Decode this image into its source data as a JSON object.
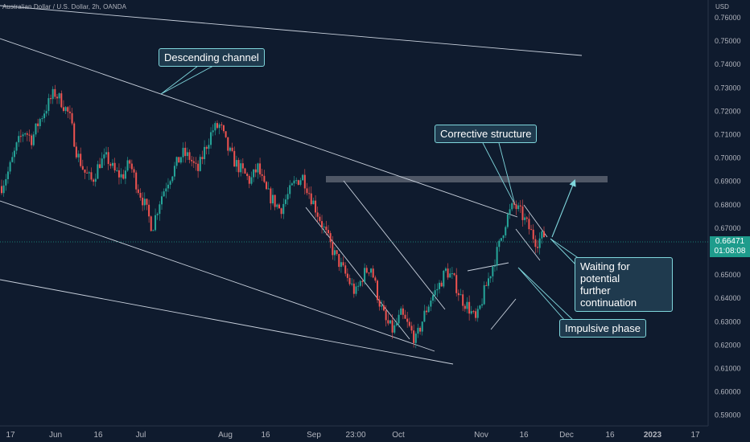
{
  "header": {
    "symbol": "Australian Dollar / U.S. Dollar, 2h, OANDA",
    "unit": "USD"
  },
  "price_badge": {
    "price": "0.66471",
    "countdown": "01:08:08",
    "color": "#1e9c8c"
  },
  "colors": {
    "background": "#0f1b2e",
    "candle_up": "#26a69a",
    "candle_down": "#ef5350",
    "trendline": "#c8d0dc",
    "arrow": "#7fd6dc",
    "zone": "#5a6270",
    "axis_text": "#b2b5be"
  },
  "annotations": {
    "descending_channel": "Descending channel",
    "corrective_structure": "Corrective structure",
    "waiting_line1": "Waiting for potential",
    "waiting_line2": "further continuation",
    "impulsive_phase": "Impulsive phase"
  },
  "chart_data": {
    "type": "line",
    "title": "Australian Dollar / U.S. Dollar, 2h, OANDA",
    "y_axis_unit": "USD",
    "ylim": [
      0.585,
      0.765
    ],
    "y_ticks": [
      0.76,
      0.75,
      0.74,
      0.73,
      0.72,
      0.71,
      0.7,
      0.69,
      0.68,
      0.67,
      0.65,
      0.64,
      0.63,
      0.62,
      0.61,
      0.6,
      0.59
    ],
    "y_tick_labels": [
      "0.76000",
      "0.75000",
      "0.74000",
      "0.73000",
      "0.72000",
      "0.71000",
      "0.70000",
      "0.69000",
      "0.68000",
      "0.67000",
      "0.65000",
      "0.64000",
      "0.63000",
      "0.62000",
      "0.61000",
      "0.60000",
      "0.59000"
    ],
    "x_tick_labels": [
      "17",
      "Jun",
      "16",
      "Jul",
      "Aug",
      "16",
      "Sep",
      "23:00",
      "Oct",
      "Nov",
      "16",
      "Dec",
      "16",
      "2023",
      "17"
    ],
    "current_price": 0.66471,
    "resistance_zone": [
      0.6905,
      0.6925
    ],
    "series": [
      {
        "values": [
          0.688,
          0.695,
          0.705,
          0.712,
          0.708,
          0.716,
          0.722,
          0.728,
          0.724,
          0.718,
          0.702,
          0.694,
          0.69,
          0.698,
          0.7,
          0.694,
          0.692,
          0.698,
          0.688,
          0.68,
          0.67,
          0.682,
          0.69,
          0.696,
          0.702,
          0.7,
          0.694,
          0.704,
          0.712,
          0.714,
          0.704,
          0.698,
          0.694,
          0.69,
          0.696,
          0.686,
          0.682,
          0.678,
          0.684,
          0.69,
          0.692,
          0.684,
          0.676,
          0.668,
          0.66,
          0.654,
          0.648,
          0.642,
          0.65,
          0.654,
          0.64,
          0.63,
          0.626,
          0.633,
          0.628,
          0.622,
          0.632,
          0.64,
          0.645,
          0.652,
          0.648,
          0.64,
          0.636,
          0.63,
          0.642,
          0.652,
          0.662,
          0.674,
          0.68,
          0.676,
          0.67,
          0.664,
          0.667
        ]
      }
    ],
    "grid": false,
    "legend": "none"
  }
}
